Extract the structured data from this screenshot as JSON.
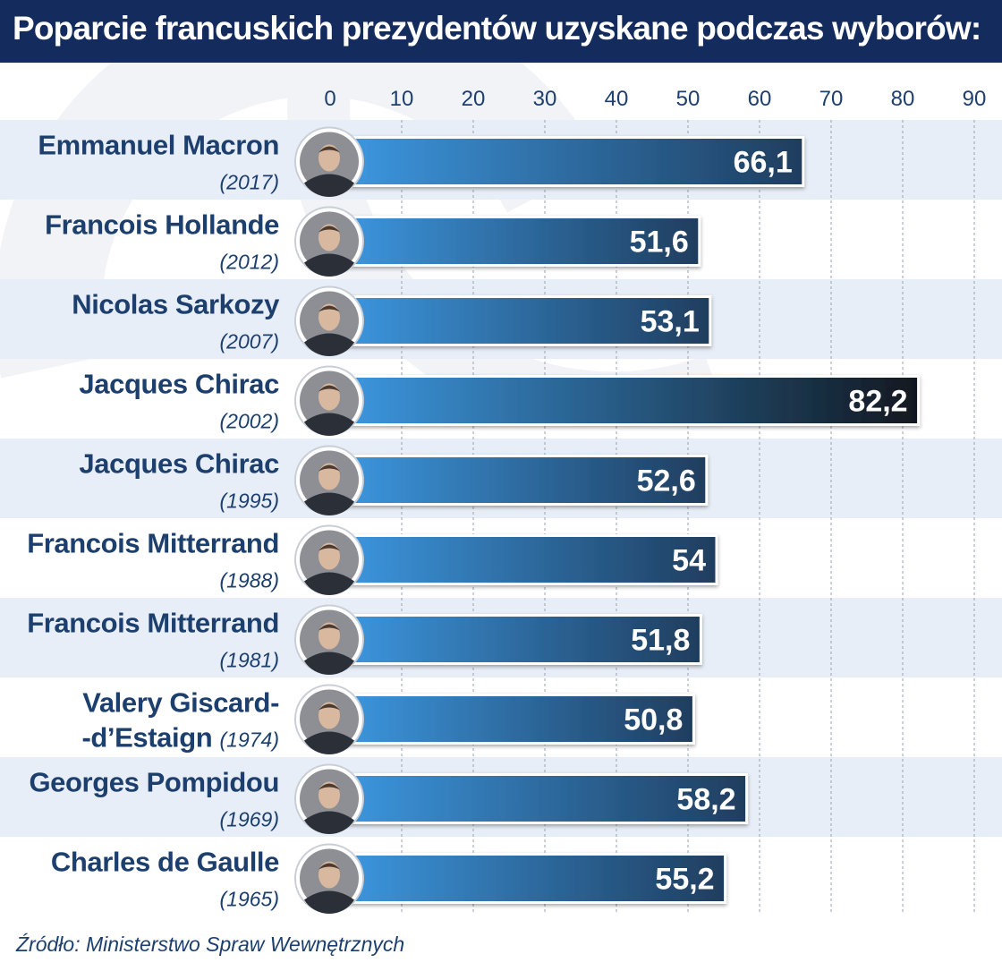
{
  "header": {
    "title": "Poparcie francuskich prezydentów uzyskane podczas wyborów:"
  },
  "source": "Źródło: Ministerstwo Spraw Wewnętrznych",
  "chart_data": {
    "type": "bar",
    "orientation": "horizontal",
    "title": "Poparcie francuskich prezydentów uzyskane podczas wyborów:",
    "xlim": [
      0,
      90
    ],
    "x_ticks": [
      "0",
      "10",
      "20",
      "30",
      "40",
      "50",
      "60",
      "70",
      "80",
      "90"
    ],
    "grid": true,
    "categories": [
      {
        "name": "Emmanuel Macron",
        "year": "(2017)",
        "value": 66.1,
        "label": "66,1"
      },
      {
        "name": "Francois Hollande",
        "year": "(2012)",
        "value": 51.6,
        "label": "51,6"
      },
      {
        "name": "Nicolas Sarkozy",
        "year": "(2007)",
        "value": 53.1,
        "label": "53,1"
      },
      {
        "name": "Jacques Chirac",
        "year": "(2002)",
        "value": 82.2,
        "label": "82,2"
      },
      {
        "name": "Jacques Chirac",
        "year": "(1995)",
        "value": 52.6,
        "label": "52,6"
      },
      {
        "name": "Francois Mitterrand",
        "year": "(1988)",
        "value": 54,
        "label": "54"
      },
      {
        "name": "Francois Mitterrand",
        "year": "(1981)",
        "value": 51.8,
        "label": "51,8"
      },
      {
        "name": "Valery Giscard-",
        "name2": "-d’Estaign",
        "year": "(1974)",
        "value": 50.8,
        "label": "50,8"
      },
      {
        "name": "Georges Pompidou",
        "year": "(1969)",
        "value": 58.2,
        "label": "58,2"
      },
      {
        "name": "Charles de Gaulle",
        "year": "(1965)",
        "value": 55.2,
        "label": "55,2"
      }
    ],
    "colors": {
      "header_bg": "#142b5e",
      "text": "#1d3f6e",
      "row_band": "#e8eef7",
      "bar_start": "#3d9ae4",
      "bar_end": "#1f3d5e",
      "bar_max_end": "#111820"
    }
  }
}
